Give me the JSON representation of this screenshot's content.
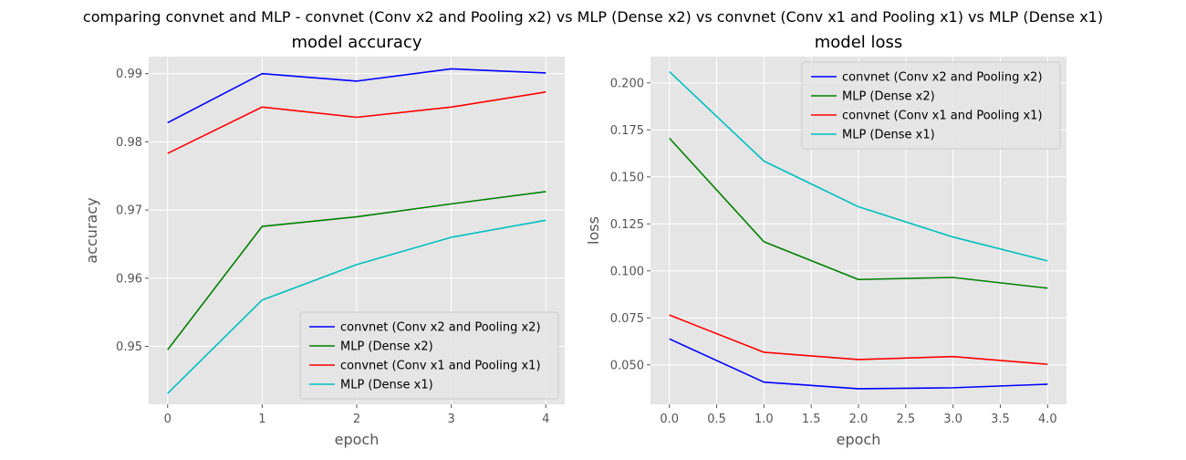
{
  "figure": {
    "suptitle": "comparing convnet and MLP - convnet (Conv x2 and Pooling x2) vs MLP (Dense x2) vs convnet (Conv x1 and Pooling x1) vs MLP (Dense x1)"
  },
  "chart_data": [
    {
      "type": "line",
      "title": "model accuracy",
      "xlabel": "epoch",
      "ylabel": "accuracy",
      "x": [
        0,
        1,
        2,
        3,
        4
      ],
      "xticks": [
        "0",
        "1",
        "2",
        "3",
        "4"
      ],
      "yticks": [
        "0.95",
        "0.96",
        "0.97",
        "0.98",
        "0.99"
      ],
      "xlim": [
        -0.2,
        4.2
      ],
      "ylim": [
        0.9415,
        0.9925
      ],
      "grid": true,
      "legend_position": "lower-right",
      "series": [
        {
          "name": "convnet (Conv x2 and Pooling x2)",
          "color": "#0000ff",
          "values": [
            0.9828,
            0.99,
            0.9889,
            0.9907,
            0.9901
          ]
        },
        {
          "name": "MLP (Dense x2)",
          "color": "#008000",
          "values": [
            0.9495,
            0.9676,
            0.969,
            0.9709,
            0.9727
          ]
        },
        {
          "name": "convnet (Conv x1 and Pooling x1)",
          "color": "#ff0000",
          "values": [
            0.9783,
            0.9851,
            0.9836,
            0.9851,
            0.9873
          ]
        },
        {
          "name": "MLP (Dense x1)",
          "color": "#00bfbf",
          "values": [
            0.9431,
            0.9568,
            0.962,
            0.966,
            0.9685
          ]
        }
      ]
    },
    {
      "type": "line",
      "title": "model loss",
      "xlabel": "epoch",
      "ylabel": "loss",
      "x": [
        0,
        1,
        2,
        3,
        4
      ],
      "xticks": [
        "0.0",
        "0.5",
        "1.0",
        "1.5",
        "2.0",
        "2.5",
        "3.0",
        "3.5",
        "4.0"
      ],
      "yticks": [
        "0.050",
        "0.075",
        "0.100",
        "0.125",
        "0.150",
        "0.175",
        "0.200"
      ],
      "xlim": [
        -0.2,
        4.2
      ],
      "ylim": [
        0.029,
        0.214
      ],
      "grid": true,
      "legend_position": "upper-right",
      "series": [
        {
          "name": "convnet (Conv x2 and Pooling x2)",
          "color": "#0000ff",
          "values": [
            0.0638,
            0.0408,
            0.0373,
            0.0378,
            0.0397
          ]
        },
        {
          "name": "MLP (Dense x2)",
          "color": "#008000",
          "values": [
            0.1706,
            0.1155,
            0.0954,
            0.0965,
            0.0908
          ]
        },
        {
          "name": "convnet (Conv x1 and Pooling x1)",
          "color": "#ff0000",
          "values": [
            0.0765,
            0.0567,
            0.0528,
            0.0544,
            0.0503
          ]
        },
        {
          "name": "MLP (Dense x1)",
          "color": "#00bfbf",
          "values": [
            0.206,
            0.1584,
            0.1341,
            0.118,
            0.1053
          ]
        }
      ]
    }
  ]
}
